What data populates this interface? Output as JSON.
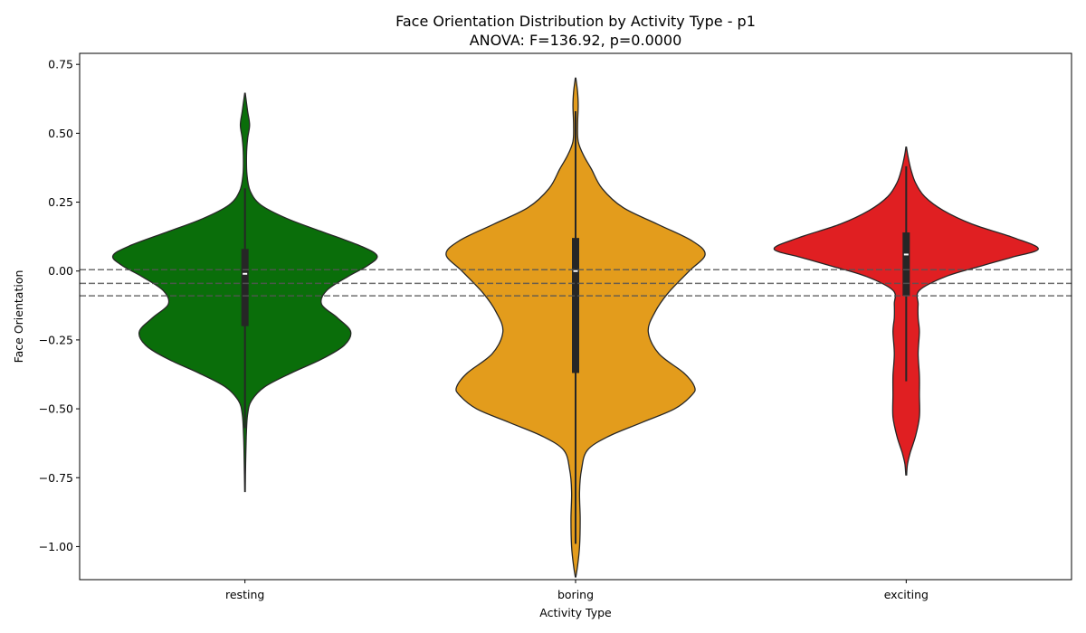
{
  "chart_data": {
    "type": "violin",
    "title": "Face Orientation Distribution by Activity Type - p1",
    "subtitle": "ANOVA: F=136.92, p=0.0000",
    "xlabel": "Activity Type",
    "ylabel": "Face Orientation",
    "categories": [
      "resting",
      "boring",
      "exciting"
    ],
    "colors": [
      "#0a6e0a",
      "#e39c1c",
      "#e01f22"
    ],
    "ylim": [
      -1.12,
      0.79
    ],
    "yticks": [
      0.75,
      0.5,
      0.25,
      0.0,
      -0.25,
      -0.5,
      -0.75,
      -1.0
    ],
    "ytick_labels": [
      "0.75",
      "0.50",
      "0.25",
      "0.00",
      "−0.25",
      "−0.50",
      "−0.75",
      "−1.00"
    ],
    "reference_lines": [
      0.005,
      -0.045,
      -0.09
    ],
    "grid": false,
    "series": [
      {
        "category": "resting",
        "quartiles": [
          -0.2,
          -0.01,
          0.08
        ],
        "whiskers": [
          -0.57,
          0.3
        ],
        "profile": [
          [
            -0.8,
            0.002
          ],
          [
            -0.7,
            0.005
          ],
          [
            -0.6,
            0.01
          ],
          [
            -0.52,
            0.02
          ],
          [
            -0.47,
            0.05
          ],
          [
            -0.42,
            0.15
          ],
          [
            -0.37,
            0.35
          ],
          [
            -0.32,
            0.58
          ],
          [
            -0.27,
            0.75
          ],
          [
            -0.22,
            0.8
          ],
          [
            -0.17,
            0.7
          ],
          [
            -0.12,
            0.58
          ],
          [
            -0.07,
            0.62
          ],
          [
            -0.02,
            0.78
          ],
          [
            0.02,
            0.93
          ],
          [
            0.055,
            1.0
          ],
          [
            0.09,
            0.88
          ],
          [
            0.14,
            0.6
          ],
          [
            0.19,
            0.32
          ],
          [
            0.24,
            0.12
          ],
          [
            0.29,
            0.04
          ],
          [
            0.35,
            0.015
          ],
          [
            0.42,
            0.012
          ],
          [
            0.48,
            0.02
          ],
          [
            0.53,
            0.035
          ],
          [
            0.58,
            0.02
          ],
          [
            0.645,
            0.002
          ]
        ]
      },
      {
        "category": "boring",
        "quartiles": [
          -0.37,
          0.0,
          0.12
        ],
        "whiskers": [
          -0.99,
          0.58
        ],
        "profile": [
          [
            -1.11,
            0.002
          ],
          [
            -1.07,
            0.015
          ],
          [
            -1.0,
            0.03
          ],
          [
            -0.9,
            0.035
          ],
          [
            -0.8,
            0.03
          ],
          [
            -0.72,
            0.045
          ],
          [
            -0.65,
            0.09
          ],
          [
            -0.6,
            0.25
          ],
          [
            -0.55,
            0.5
          ],
          [
            -0.5,
            0.75
          ],
          [
            -0.45,
            0.88
          ],
          [
            -0.42,
            0.9
          ],
          [
            -0.37,
            0.82
          ],
          [
            -0.3,
            0.63
          ],
          [
            -0.22,
            0.55
          ],
          [
            -0.15,
            0.6
          ],
          [
            -0.08,
            0.7
          ],
          [
            0.0,
            0.86
          ],
          [
            0.06,
            0.98
          ],
          [
            0.11,
            0.88
          ],
          [
            0.17,
            0.62
          ],
          [
            0.23,
            0.36
          ],
          [
            0.3,
            0.2
          ],
          [
            0.37,
            0.12
          ],
          [
            0.42,
            0.06
          ],
          [
            0.47,
            0.02
          ],
          [
            0.53,
            0.015
          ],
          [
            0.6,
            0.02
          ],
          [
            0.65,
            0.015
          ],
          [
            0.7,
            0.002
          ]
        ]
      },
      {
        "category": "exciting",
        "quartiles": [
          -0.09,
          0.06,
          0.14
        ],
        "whiskers": [
          -0.4,
          0.38
        ],
        "profile": [
          [
            -0.74,
            0.003
          ],
          [
            -0.7,
            0.01
          ],
          [
            -0.66,
            0.03
          ],
          [
            -0.6,
            0.07
          ],
          [
            -0.53,
            0.1
          ],
          [
            -0.45,
            0.1
          ],
          [
            -0.38,
            0.1
          ],
          [
            -0.3,
            0.09
          ],
          [
            -0.22,
            0.1
          ],
          [
            -0.17,
            0.09
          ],
          [
            -0.12,
            0.09
          ],
          [
            -0.07,
            0.1
          ],
          [
            -0.02,
            0.3
          ],
          [
            0.02,
            0.58
          ],
          [
            0.05,
            0.8
          ],
          [
            0.08,
            1.0
          ],
          [
            0.12,
            0.82
          ],
          [
            0.17,
            0.5
          ],
          [
            0.22,
            0.28
          ],
          [
            0.27,
            0.14
          ],
          [
            0.32,
            0.07
          ],
          [
            0.37,
            0.035
          ],
          [
            0.42,
            0.012
          ],
          [
            0.45,
            0.002
          ]
        ]
      }
    ]
  }
}
